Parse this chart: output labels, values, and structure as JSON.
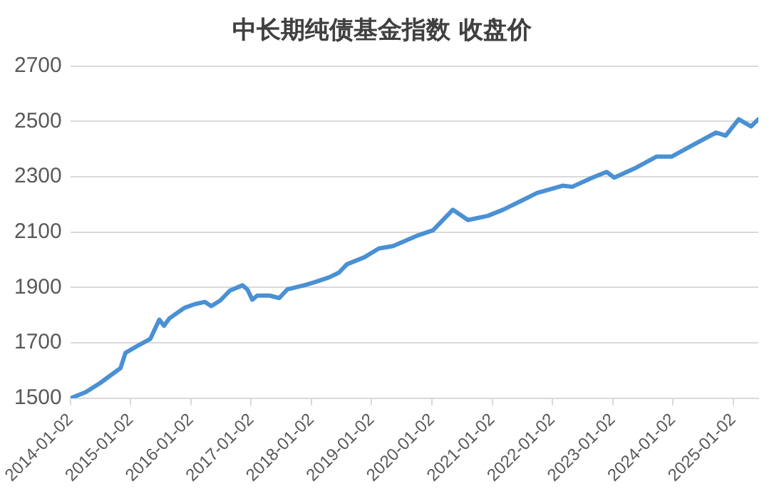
{
  "chart_data": {
    "type": "line",
    "title": "中长期纯债基金指数 收盘价",
    "x": [
      "2014-01-02",
      "2014-04-05",
      "2014-07-01",
      "2014-11-02",
      "2014-12-02",
      "2015-02-03",
      "2015-05-01",
      "2015-06-25",
      "2015-07-24",
      "2015-08-26",
      "2015-11-25",
      "2016-01-27",
      "2016-03-28",
      "2016-05-05",
      "2016-06-28",
      "2016-08-26",
      "2016-11-10",
      "2016-12-10",
      "2017-01-09",
      "2017-02-08",
      "2017-04-23",
      "2017-06-21",
      "2017-08-08",
      "2017-11-18",
      "2018-01-20",
      "2018-04-20",
      "2018-06-18",
      "2018-08-05",
      "2018-11-18",
      "2019-02-14",
      "2019-05-12",
      "2019-10-12",
      "2020-01-09",
      "2020-05-08",
      "2020-08-08",
      "2020-12-06",
      "2021-03-08",
      "2021-07-06",
      "2021-10-02",
      "2022-03-05",
      "2022-05-02",
      "2022-09-01",
      "2022-11-26",
      "2023-01-12",
      "2023-05-27",
      "2023-09-24",
      "2023-12-25",
      "2024-04-23",
      "2024-09-20",
      "2024-11-17",
      "2025-02-04",
      "2025-04-20",
      "2025-06-03"
    ],
    "series": [
      {
        "color": "#4a90d4",
        "values": [
          1500,
          1522,
          1555,
          1609,
          1664,
          1686,
          1714,
          1784,
          1762,
          1789,
          1827,
          1840,
          1848,
          1833,
          1853,
          1889,
          1908,
          1893,
          1856,
          1871,
          1871,
          1862,
          1893,
          1908,
          1919,
          1937,
          1954,
          1984,
          2009,
          2041,
          2050,
          2089,
          2107,
          2181,
          2144,
          2159,
          2181,
          2216,
          2242,
          2268,
          2264,
          2297,
          2318,
          2297,
          2334,
          2373,
          2373,
          2412,
          2460,
          2449,
          2508,
          2482,
          2508
        ]
      }
    ],
    "xlim": [
      "2014-01-02",
      "2025-06-03"
    ],
    "xticks": [
      "2014-01-02",
      "2015-01-02",
      "2016-01-02",
      "2017-01-02",
      "2018-01-02",
      "2019-01-02",
      "2020-01-02",
      "2021-01-02",
      "2022-01-02",
      "2023-01-02",
      "2024-01-02",
      "2025-01-02"
    ],
    "ylim": [
      1500,
      2700
    ],
    "yticks": [
      1500,
      1700,
      1900,
      2100,
      2300,
      2500,
      2700
    ],
    "grid": "y",
    "legend": false,
    "marker": "none",
    "line_style": "solid"
  }
}
